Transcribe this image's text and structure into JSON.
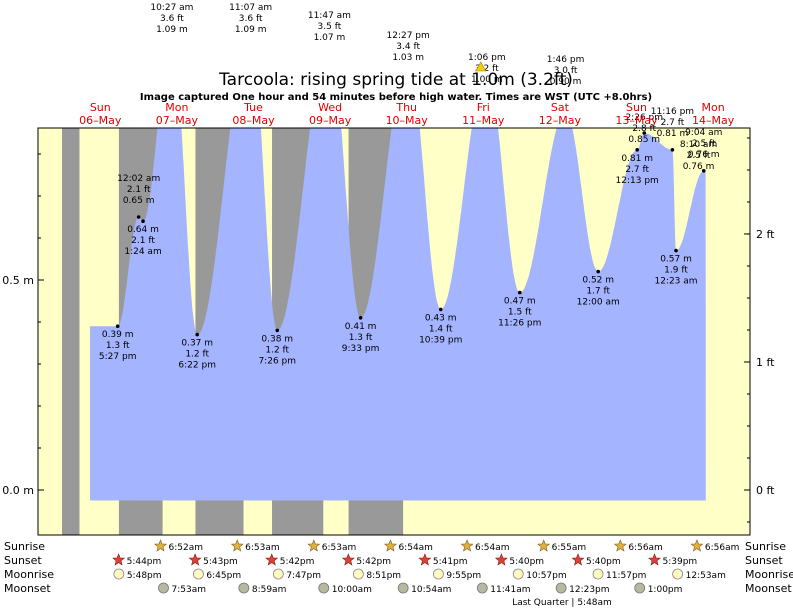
{
  "chart_data": {
    "type": "area",
    "title": "Tarcoola: rising  spring tide at 1.0m (3.2ft)",
    "subtitle": "Image captured One hour and 54 minutes before high water. Times are WST (UTC +8.0hrs)",
    "y_unit_left": "m",
    "y_unit_right": "ft",
    "left_ticks": [
      "0.0 m",
      "0.5 m"
    ],
    "right_ticks": [
      "0 ft",
      "1 ft",
      "2 ft"
    ],
    "days": [
      {
        "dow": "Sun",
        "date": "06–May"
      },
      {
        "dow": "Mon",
        "date": "07–May"
      },
      {
        "dow": "Tue",
        "date": "08–May"
      },
      {
        "dow": "Wed",
        "date": "09–May"
      },
      {
        "dow": "Thu",
        "date": "10–May"
      },
      {
        "dow": "Fri",
        "date": "11–May"
      },
      {
        "dow": "Sat",
        "date": "12–May"
      },
      {
        "dow": "Sun",
        "date": "13–May"
      },
      {
        "dow": "Mon",
        "date": "14–May"
      }
    ],
    "high_tides": [
      {
        "time": "10:27 am",
        "ft": "3.6 ft",
        "m": "1.09 m",
        "day": 1.435,
        "height": 1.09
      },
      {
        "time": "11:07 am",
        "ft": "3.6 ft",
        "m": "1.09 m",
        "day": 2.463,
        "height": 1.09
      },
      {
        "time": "11:47 am",
        "ft": "3.5 ft",
        "m": "1.07 m",
        "day": 3.491,
        "height": 1.07
      },
      {
        "time": "12:27 pm",
        "ft": "3.4 ft",
        "m": "1.03 m",
        "day": 4.519,
        "height": 1.03
      },
      {
        "time": "1:06 pm",
        "ft": "3.2 ft",
        "m": "1.00 m",
        "day": 5.546,
        "height": 1.0
      },
      {
        "time": "1:46 pm",
        "ft": "3.0 ft",
        "m": "0.90 m",
        "day": 6.574,
        "height": 0.9
      },
      {
        "time": "2:26 pm",
        "ft": "2.8 ft",
        "m": "0.85 m",
        "day": 7.601,
        "height": 0.85
      }
    ],
    "low_tides": [
      {
        "time": "5:27 pm",
        "ft": "1.3 ft",
        "m": "0.39 m",
        "day": 0.727,
        "height": 0.39
      },
      {
        "time": "1:24 am",
        "ft": "2.1 ft",
        "m": "0.64 m",
        "day": 1.058,
        "height": 0.64
      },
      {
        "time": "6:22 pm",
        "ft": "1.2 ft",
        "m": "0.37 m",
        "day": 1.765,
        "height": 0.37
      },
      {
        "time": "7:26 pm",
        "ft": "1.2 ft",
        "m": "0.38 m",
        "day": 2.81,
        "height": 0.38
      },
      {
        "time": "9:33 pm",
        "ft": "1.3 ft",
        "m": "0.41 m",
        "day": 3.898,
        "height": 0.41
      },
      {
        "time": "10:39 pm",
        "ft": "1.4 ft",
        "m": "0.43 m",
        "day": 4.944,
        "height": 0.43
      },
      {
        "time": "11:26 pm",
        "ft": "1.5 ft",
        "m": "0.47 m",
        "day": 5.976,
        "height": 0.47
      },
      {
        "time": "12:00 am",
        "ft": "1.7 ft",
        "m": "0.52 m",
        "day": 7.0,
        "height": 0.52
      },
      {
        "time": "12:13 pm",
        "ft": "2.7 ft",
        "m": "0.81 m",
        "day": 7.509,
        "height": 0.81
      },
      {
        "time": "12:23 am",
        "ft": "1.9 ft",
        "m": "0.57 m",
        "day": 8.016,
        "height": 0.57
      }
    ],
    "small_highs": [
      {
        "time": "12:02 am",
        "ft": "2.1 ft",
        "m": "0.65 m",
        "day": 1.001,
        "height": 0.65
      },
      {
        "time": "11:16 pm",
        "ft": "2.7 ft",
        "m": "0.81 m",
        "day": 7.969,
        "height": 0.81
      },
      {
        "time": "9:04 am",
        "ft": "2.5 ft",
        "m": "0.76 m",
        "day": 8.378,
        "height": 0.76
      }
    ],
    "last_label": {
      "time": "8:10 am",
      "ft": "2.5 ft",
      "m": "0.76 m"
    },
    "current": {
      "day": 5.467,
      "height": 1.0
    },
    "night": [
      [
        0.0,
        0.228
      ],
      [
        0.743,
        1.313
      ],
      [
        1.742,
        2.37
      ],
      [
        2.742,
        3.411
      ],
      [
        3.741,
        4.453
      ],
      [
        4.737,
        4.498
      ],
      [
        5.736,
        5.539
      ],
      [
        6.736,
        6.581
      ],
      [
        7.736,
        7.623
      ]
    ],
    "rows": [
      {
        "label": "Sunrise",
        "icon": "sun",
        "items": [
          {
            "day": 1.286,
            "text": "6:52am"
          },
          {
            "day": 2.287,
            "text": "6:53am"
          },
          {
            "day": 3.287,
            "text": "6:53am"
          },
          {
            "day": 4.288,
            "text": "6:54am"
          },
          {
            "day": 5.288,
            "text": "6:54am"
          },
          {
            "day": 6.288,
            "text": "6:55am"
          },
          {
            "day": 7.289,
            "text": "6:56am"
          },
          {
            "day": 8.289,
            "text": "6:56am"
          }
        ]
      },
      {
        "label": "Sunset",
        "icon": "star",
        "items": [
          {
            "day": 0.739,
            "text": "5:44pm"
          },
          {
            "day": 1.738,
            "text": "5:43pm"
          },
          {
            "day": 2.738,
            "text": "5:42pm"
          },
          {
            "day": 3.738,
            "text": "5:42pm"
          },
          {
            "day": 4.737,
            "text": "5:41pm"
          },
          {
            "day": 5.736,
            "text": "5:40pm"
          },
          {
            "day": 6.736,
            "text": "5:40pm"
          },
          {
            "day": 7.735,
            "text": "5:39pm"
          }
        ]
      },
      {
        "label": "Moonrise",
        "icon": "moon",
        "items": [
          {
            "day": 0.742,
            "text": "5:48pm"
          },
          {
            "day": 1.781,
            "text": "6:45pm"
          },
          {
            "day": 2.824,
            "text": "7:47pm"
          },
          {
            "day": 3.869,
            "text": "8:51pm"
          },
          {
            "day": 4.914,
            "text": "9:55pm"
          },
          {
            "day": 5.956,
            "text": "10:57pm"
          },
          {
            "day": 6.998,
            "text": "11:57pm"
          },
          {
            "day": 8.037,
            "text": "12:53am"
          }
        ]
      },
      {
        "label": "Moonset",
        "icon": "moonset",
        "items": [
          {
            "day": 1.325,
            "text": "7:53am"
          },
          {
            "day": 2.374,
            "text": "8:59am"
          },
          {
            "day": 3.417,
            "text": "10:00am"
          },
          {
            "day": 4.454,
            "text": "10:54am"
          },
          {
            "day": 5.487,
            "text": "11:41am"
          },
          {
            "day": 6.516,
            "text": "12:23pm"
          },
          {
            "day": 7.542,
            "text": "1:00pm"
          }
        ]
      }
    ],
    "moon_phase": "Last Quarter | 5:48am",
    "colors": {
      "water": "#a4b4ff",
      "night": "#999999",
      "day_bg": "#ffffc8",
      "label_red": "#e00000",
      "frame": "#000000"
    }
  }
}
